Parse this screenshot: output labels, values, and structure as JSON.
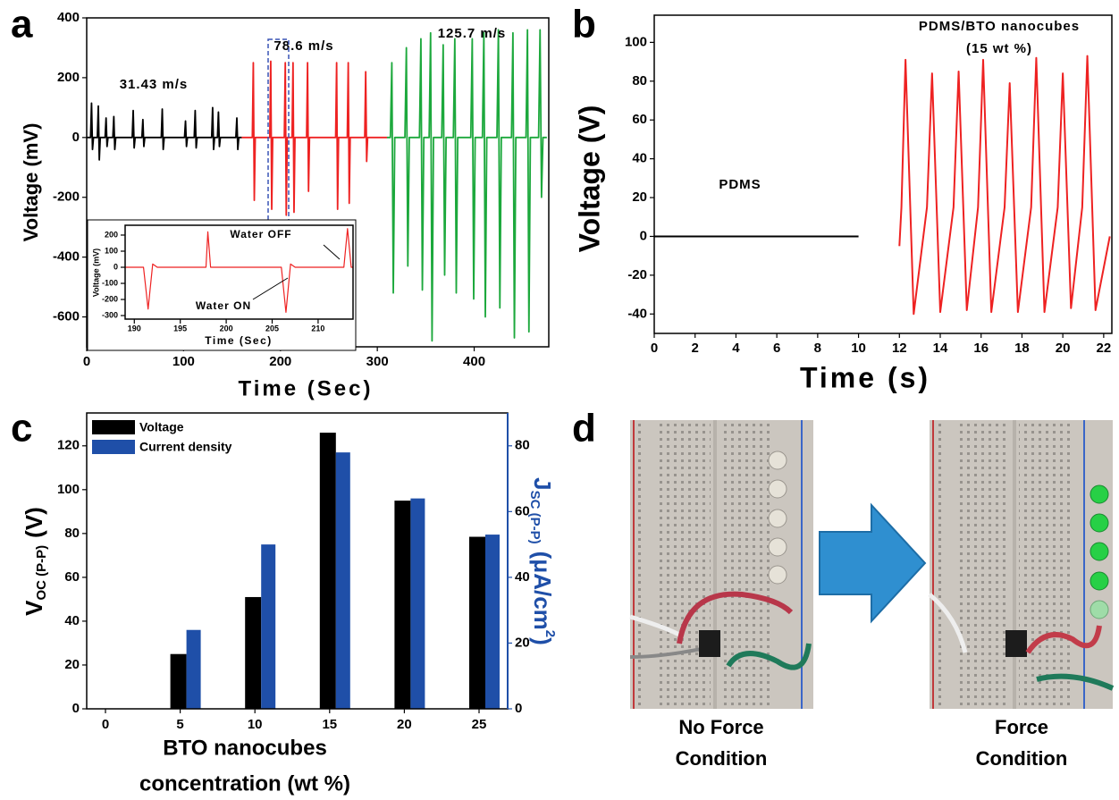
{
  "chart_data": [
    {
      "type": "line",
      "label": "a",
      "y_label": "Voltage (mV)",
      "x_label": "Time (Sec)",
      "xlim": [
        0,
        477
      ],
      "ylim": [
        -700,
        400
      ],
      "xticks": [
        0,
        100,
        200,
        300,
        400
      ],
      "yticks": [
        -600,
        -400,
        -200,
        0,
        200,
        400
      ],
      "annotations": [
        "31.43 m/s",
        "78.6 m/s",
        "125.7 m/s"
      ],
      "series": [
        {
          "color": "#000000",
          "x": [
            0,
            4,
            5,
            6,
            7,
            11,
            12,
            13,
            14,
            19,
            20,
            21,
            22,
            27,
            28,
            29,
            30,
            47,
            48,
            49,
            50,
            57,
            58,
            59,
            60,
            77,
            78,
            79,
            80,
            101,
            102,
            103,
            104,
            111,
            112,
            113,
            114,
            129,
            130,
            131,
            132,
            135,
            136,
            137,
            138,
            154,
            155,
            156,
            157,
            160
          ],
          "values": [
            0,
            0,
            115,
            -40,
            0,
            0,
            105,
            -75,
            0,
            0,
            65,
            -30,
            0,
            0,
            70,
            -40,
            0,
            0,
            90,
            -35,
            0,
            0,
            60,
            -30,
            0,
            0,
            95,
            -40,
            0,
            0,
            55,
            -30,
            0,
            0,
            90,
            -35,
            0,
            0,
            100,
            -40,
            0,
            0,
            85,
            -30,
            0,
            0,
            65,
            -40,
            0,
            0
          ]
        },
        {
          "color": "#ee2222",
          "x": [
            160,
            171,
            172,
            173,
            174,
            189,
            190,
            191,
            192,
            204,
            205,
            206,
            207,
            212,
            213,
            214,
            215,
            227,
            228,
            229,
            230,
            257,
            258,
            259,
            260,
            269,
            270,
            271,
            272,
            287,
            288,
            289,
            290,
            310
          ],
          "values": [
            0,
            0,
            250,
            -210,
            0,
            0,
            255,
            -240,
            0,
            0,
            250,
            -260,
            0,
            0,
            250,
            -250,
            0,
            0,
            250,
            -180,
            0,
            0,
            250,
            -240,
            0,
            0,
            250,
            -220,
            0,
            0,
            220,
            -80,
            0,
            0
          ]
        },
        {
          "color": "#1ca83c",
          "x": [
            310,
            313.5,
            315,
            316.5,
            318,
            328.5,
            330,
            331.5,
            333,
            343.5,
            345,
            346.5,
            348,
            353.5,
            355,
            356.5,
            358,
            366.5,
            368,
            369.5,
            371,
            378.5,
            380,
            381.5,
            383,
            396.5,
            398,
            399.5,
            401,
            408.5,
            410,
            411.5,
            413,
            423.5,
            425,
            426.5,
            428,
            438.5,
            440,
            441.5,
            443,
            453.5,
            455,
            456.5,
            458,
            466.5,
            468,
            469.5,
            471,
            475
          ],
          "values": [
            0,
            0,
            250,
            -520,
            0,
            0,
            300,
            -430,
            0,
            0,
            330,
            -510,
            0,
            0,
            350,
            -680,
            0,
            0,
            310,
            -460,
            0,
            0,
            330,
            -520,
            0,
            0,
            330,
            -540,
            0,
            0,
            350,
            -600,
            0,
            0,
            360,
            -570,
            0,
            0,
            350,
            -670,
            0,
            0,
            360,
            -650,
            0,
            0,
            360,
            -200,
            0,
            0
          ]
        }
      ]
    },
    {
      "type": "line",
      "y_label": "Voltage (mV)",
      "x_label": "Time (Sec)",
      "xlim": [
        189,
        213.8
      ],
      "ylim": [
        -322,
        261
      ],
      "xticks": [
        190,
        195,
        200,
        205,
        210
      ],
      "yticks": [
        -300,
        -200,
        -100,
        0,
        100,
        200
      ],
      "annotations": [
        "Water OFF",
        "Water ON"
      ],
      "series": [
        {
          "color": "#ee2222",
          "x": [
            189,
            191,
            191.5,
            192,
            192.5,
            197.8,
            198,
            198.3,
            206,
            206.5,
            207,
            207.5,
            212.8,
            213.2,
            213.6,
            213.8
          ],
          "values": [
            0,
            0,
            -260,
            20,
            0,
            0,
            220,
            0,
            0,
            -280,
            20,
            0,
            0,
            240,
            0,
            0
          ]
        }
      ]
    },
    {
      "type": "line",
      "label": "b",
      "y_label": "Voltage (V)",
      "x_label": "Time (s)",
      "xlim": [
        0,
        22.4
      ],
      "ylim": [
        -50,
        114
      ],
      "xticks": [
        0,
        2,
        4,
        6,
        8,
        10,
        12,
        14,
        16,
        18,
        20,
        22
      ],
      "yticks": [
        -40,
        -20,
        0,
        20,
        40,
        60,
        80,
        100
      ],
      "annotations": [
        "PDMS",
        "PDMS/BTO nanocubes",
        "(15 wt %)"
      ],
      "series": [
        {
          "color": "#000000",
          "x": [
            0,
            10
          ],
          "values": [
            0,
            0
          ]
        },
        {
          "color": "#ee2222",
          "x": [
            12.0,
            12.1,
            12.3,
            12.7,
            13.35,
            13.6,
            14.0,
            14.65,
            14.9,
            15.3,
            15.85,
            16.1,
            16.5,
            17.15,
            17.4,
            17.8,
            18.45,
            18.7,
            19.1,
            19.75,
            20.0,
            20.4,
            20.95,
            21.2,
            21.6,
            22.3
          ],
          "values": [
            -5,
            15,
            91,
            -40,
            15,
            84,
            -39,
            15,
            85,
            -38,
            15,
            91,
            -39,
            15,
            79,
            -39,
            15,
            92,
            -39,
            15,
            84,
            -37,
            15,
            93,
            -38,
            0
          ]
        }
      ]
    },
    {
      "type": "bar",
      "label": "c",
      "categories": [
        "0",
        "5",
        "10",
        "15",
        "20",
        "25"
      ],
      "x_label": [
        "BTO nanocubes",
        "concentration (wt %)"
      ],
      "y_label": [
        "V",
        "OC (P-P)",
        "(V)"
      ],
      "y2_label": [
        "J",
        "SC (P-P)",
        "(μA/cm",
        "2",
        ")"
      ],
      "ylim": [
        0,
        135
      ],
      "yticks": [
        0,
        20,
        40,
        60,
        80,
        100,
        120
      ],
      "y2lim": [
        0,
        90
      ],
      "y2ticks": [
        0,
        20,
        40,
        60,
        80
      ],
      "legend": "upper left",
      "series": [
        {
          "name": "Voltage",
          "color": "#000000",
          "values": [
            0,
            25,
            51,
            126,
            95,
            78.5
          ]
        },
        {
          "name": "Current density",
          "color": "#1f4fa8",
          "axis": "y2",
          "values": [
            0,
            24,
            50,
            78,
            64,
            53
          ]
        }
      ]
    }
  ],
  "panel_d": {
    "label": "d",
    "captions": [
      [
        "No Force",
        "Condition"
      ],
      [
        "Force",
        "Condition"
      ]
    ]
  }
}
